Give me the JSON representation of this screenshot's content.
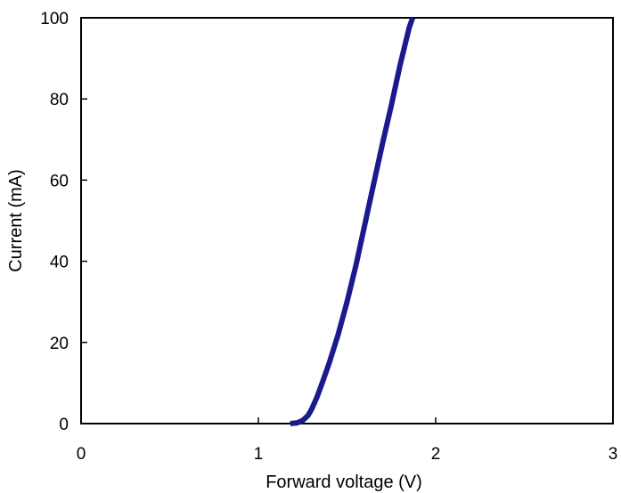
{
  "chart_data": {
    "type": "line",
    "title": "",
    "xlabel": "Forward  voltage (V)",
    "ylabel": "Current  (mA)",
    "xlim": [
      0,
      3
    ],
    "ylim": [
      0,
      100
    ],
    "xticks": [
      {
        "value": 0,
        "label": "0"
      },
      {
        "value": 1,
        "label": "1"
      },
      {
        "value": 2,
        "label": "2"
      },
      {
        "value": 3,
        "label": "3"
      }
    ],
    "yticks": [
      {
        "value": 0,
        "label": "0"
      },
      {
        "value": 20,
        "label": "20"
      },
      {
        "value": 40,
        "label": "40"
      },
      {
        "value": 60,
        "label": "60"
      },
      {
        "value": 80,
        "label": "80"
      },
      {
        "value": 100,
        "label": "100"
      }
    ],
    "grid": false,
    "legend": "none",
    "line_color": "#1a1a8c",
    "series": [
      {
        "x": [
          1.18,
          1.22,
          1.25,
          1.28,
          1.3,
          1.33,
          1.36,
          1.4,
          1.45,
          1.5,
          1.55,
          1.6,
          1.65,
          1.7,
          1.75,
          1.8,
          1.85,
          1.87
        ],
        "y": [
          0,
          0.2,
          0.8,
          2.0,
          3.5,
          6.5,
          10,
          15,
          22,
          30,
          39,
          49,
          59,
          69,
          78.5,
          88.5,
          97.5,
          100
        ]
      }
    ]
  }
}
